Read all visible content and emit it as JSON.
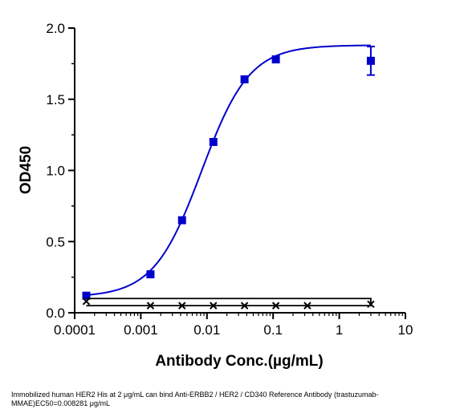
{
  "chart_data": {
    "type": "scatter",
    "xscale": "log",
    "xlim": [
      0.0001,
      10
    ],
    "ylim": [
      0,
      2.0
    ],
    "xticks": [
      0.0001,
      0.001,
      0.01,
      0.1,
      1,
      10
    ],
    "xtick_labels": [
      "0.0001",
      "0.001",
      "0.01",
      "0.1",
      "1",
      "10"
    ],
    "yticks": [
      0,
      0.5,
      1.0,
      1.5,
      2.0
    ],
    "ytick_labels": [
      "0.0",
      "0.5",
      "1.0",
      "1.5",
      "2.0"
    ],
    "xlabel": "Antibody Conc.(µg/mL)",
    "ylabel": "OD450",
    "grid": false,
    "series": [
      {
        "color": "#0000cc",
        "marker": "square",
        "x": [
          0.00015,
          0.0014,
          0.0042,
          0.0125,
          0.037,
          0.11,
          3.0
        ],
        "y": [
          0.12,
          0.27,
          0.65,
          1.2,
          1.64,
          1.78,
          1.77
        ],
        "error": [
          0,
          0,
          0,
          0,
          0,
          0,
          0.1
        ],
        "fit": {
          "bottom": 0.11,
          "top": 1.88,
          "ec50": 0.008281,
          "hill": 1.2
        }
      },
      {
        "color": "#000000",
        "marker": "x",
        "x": [
          0.00015,
          0.0014,
          0.0042,
          0.0125,
          0.037,
          0.11,
          0.33,
          3.0
        ],
        "y": [
          0.08,
          0.05,
          0.05,
          0.05,
          0.05,
          0.05,
          0.05,
          0.06
        ],
        "bracket": {
          "x_start": 0.00015,
          "x_end": 3.0,
          "upper": 0.1,
          "lower": 0.05
        }
      }
    ]
  },
  "caption": "Immobilized human HER2 His at 2 μg/mL can bind Anti-ERBB2 / HER2 / CD340 Reference Antibody (trastuzumab-MMAE)EC50=0.008281 μg/mL"
}
